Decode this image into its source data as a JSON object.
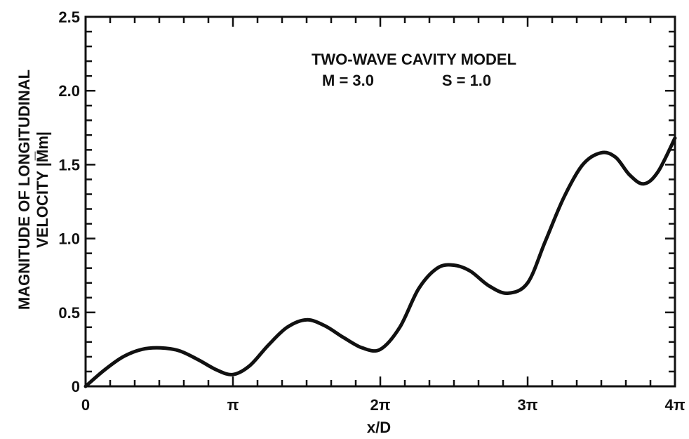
{
  "chart_data": {
    "type": "line",
    "title": "",
    "annotations": [
      "TWO-WAVE CAVITY MODEL",
      "M = 3.0",
      "S = 1.0"
    ],
    "xlabel": "x/D",
    "ylabel_lines": [
      "MAGNITUDE OF LONGITUDINAL",
      "VELOCITY |M̅m|"
    ],
    "xlim": [
      0,
      12.566
    ],
    "ylim": [
      0,
      2.5
    ],
    "x_ticks": [
      {
        "value": 0,
        "label": "0"
      },
      {
        "value": 3.1416,
        "label": "π"
      },
      {
        "value": 6.2832,
        "label": "2π"
      },
      {
        "value": 9.4248,
        "label": "3π"
      },
      {
        "value": 12.566,
        "label": "4π"
      }
    ],
    "y_ticks": [
      {
        "value": 0,
        "label": "0"
      },
      {
        "value": 0.5,
        "label": "0.5"
      },
      {
        "value": 1.0,
        "label": "1.0"
      },
      {
        "value": 1.5,
        "label": "1.5"
      },
      {
        "value": 2.0,
        "label": "2.0"
      },
      {
        "value": 2.5,
        "label": "2.5"
      }
    ],
    "grid": false,
    "series": [
      {
        "x": [
          0,
          0.4,
          0.8,
          1.2,
          1.6,
          2.0,
          2.4,
          2.8,
          3.1416,
          3.5,
          3.9,
          4.3,
          4.71,
          5.1,
          5.5,
          5.9,
          6.2832,
          6.7,
          7.1,
          7.5,
          7.85,
          8.2,
          8.6,
          9.0,
          9.4248,
          9.8,
          10.2,
          10.6,
          10.99,
          11.3,
          11.6,
          11.9,
          12.2,
          12.566
        ],
        "y": [
          0,
          0.11,
          0.2,
          0.25,
          0.26,
          0.24,
          0.18,
          0.11,
          0.08,
          0.14,
          0.28,
          0.4,
          0.45,
          0.41,
          0.33,
          0.26,
          0.25,
          0.4,
          0.66,
          0.8,
          0.82,
          0.78,
          0.68,
          0.63,
          0.7,
          0.98,
          1.28,
          1.5,
          1.58,
          1.55,
          1.43,
          1.37,
          1.45,
          1.68
        ]
      }
    ],
    "line_color": "#111111"
  }
}
